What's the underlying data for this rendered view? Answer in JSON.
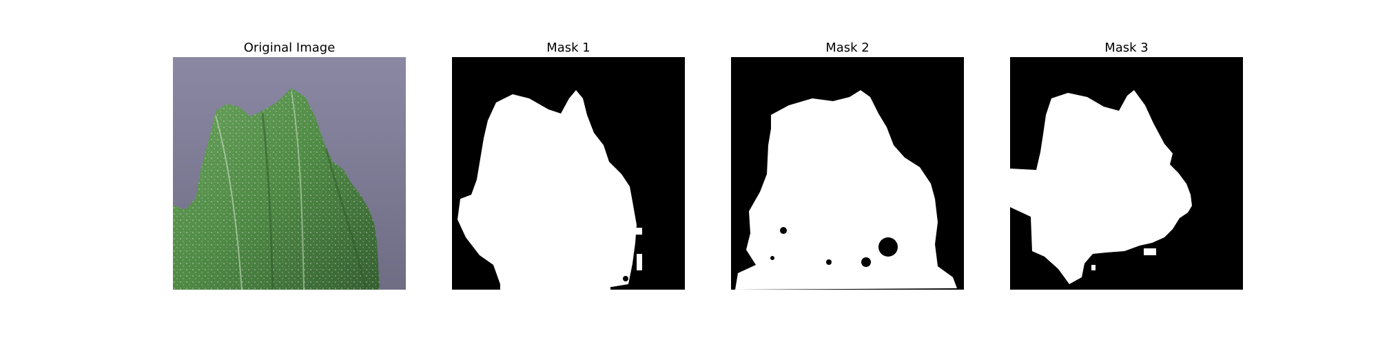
{
  "figure": {
    "panels": [
      {
        "title": "Original Image"
      },
      {
        "title": "Mask 1"
      },
      {
        "title": "Mask 2"
      },
      {
        "title": "Mask 3"
      }
    ]
  },
  "colors": {
    "background": "#ffffff",
    "mask_background": "#000000",
    "mask_foreground": "#ffffff",
    "leaf_green": "#4f8a45",
    "surface_gray": "#7c7a92"
  }
}
